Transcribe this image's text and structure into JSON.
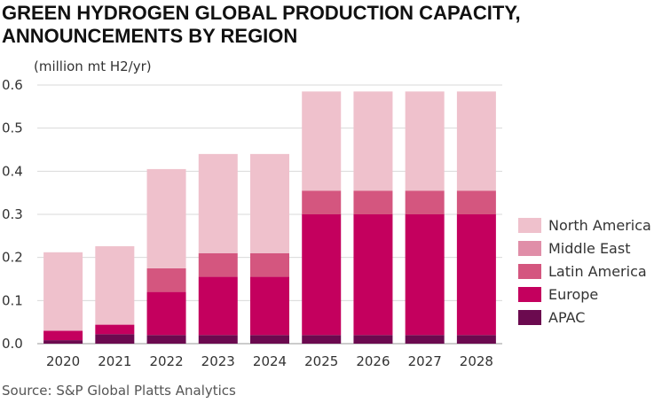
{
  "title_line1": "GREEN HYDROGEN GLOBAL PRODUCTION CAPACITY,",
  "title_line2": "ANNOUNCEMENTS BY REGION",
  "source": "Source: S&P Global Platts Analytics",
  "chart_data": {
    "type": "bar",
    "stacked": true,
    "ylabel": "(million mt H2/yr)",
    "ylim": [
      0,
      0.6
    ],
    "yticks": [
      "0.0",
      "0.1",
      "0.2",
      "0.3",
      "0.4",
      "0.5",
      "0.6"
    ],
    "grid": true,
    "legend_position": "right",
    "categories": [
      "2020",
      "2021",
      "2022",
      "2023",
      "2024",
      "2025",
      "2026",
      "2027",
      "2028"
    ],
    "series": [
      {
        "name": "APAC",
        "color": "#6b0a4f",
        "values": [
          0.008,
          0.022,
          0.02,
          0.02,
          0.02,
          0.02,
          0.02,
          0.02,
          0.02
        ]
      },
      {
        "name": "Europe",
        "color": "#c4005e",
        "values": [
          0.022,
          0.022,
          0.1,
          0.135,
          0.135,
          0.28,
          0.28,
          0.28,
          0.28
        ]
      },
      {
        "name": "Latin America",
        "color": "#d4567f",
        "values": [
          0.0,
          0.0,
          0.055,
          0.055,
          0.055,
          0.055,
          0.055,
          0.055,
          0.055
        ]
      },
      {
        "name": "Middle East",
        "color": "#e08ea8",
        "values": [
          0.0,
          0.0,
          0.0,
          0.0,
          0.0,
          0.0,
          0.0,
          0.0,
          0.0
        ]
      },
      {
        "name": "North America",
        "color": "#efc1cc",
        "values": [
          0.182,
          0.182,
          0.23,
          0.23,
          0.23,
          0.23,
          0.23,
          0.23,
          0.23
        ]
      }
    ],
    "legend_order": [
      "North America",
      "Middle East",
      "Latin America",
      "Europe",
      "APAC"
    ]
  }
}
